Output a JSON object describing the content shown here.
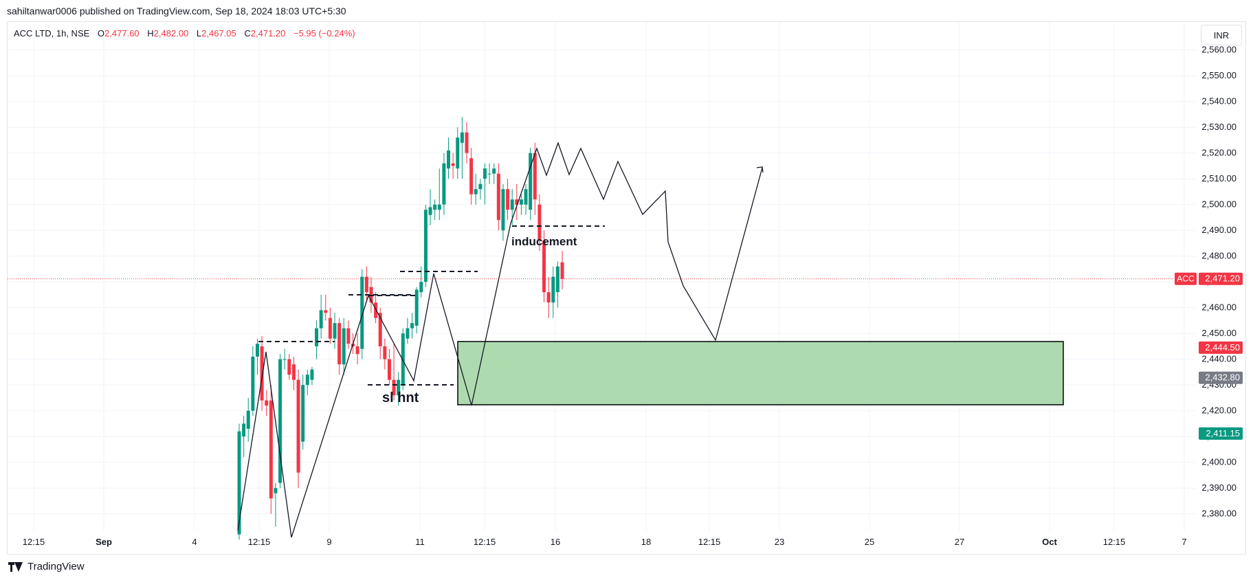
{
  "header": {
    "publisher": "sahiltanwar0006 published on TradingView.com, Sep 18, 2024 18:03 UTC+5:30"
  },
  "ohlc": {
    "symbol": "ACC LTD, 1h, NSE",
    "o_label": "O",
    "o": "2,477.60",
    "h_label": "H",
    "h": "2,482.00",
    "l_label": "L",
    "l": "2,467.05",
    "c_label": "C",
    "c": "2,471.20",
    "change": "−5.95 (−0.24%)"
  },
  "currency": "INR",
  "brand": "TradingView",
  "colors": {
    "up": "#089981",
    "down": "#f23645",
    "zone_fill": "#a5d6a7",
    "grid": "#f0f3fa",
    "price_line": "#f23645",
    "neutral_badge": "#787b86"
  },
  "chart_data": {
    "type": "candlestick",
    "symbol": "ACC",
    "timeframe": "1h",
    "y_ticks": [
      2380,
      2390,
      2400,
      2410,
      2420,
      2430,
      2440,
      2450,
      2460,
      2470,
      2480,
      2490,
      2500,
      2510,
      2520,
      2530,
      2540,
      2550,
      2560
    ],
    "y_tick_labels": [
      "2,380.00",
      "2,390.00",
      "2,400.00",
      "2,410.00",
      "2,420.00",
      "2,430.00",
      "2,440.00",
      "2,450.00",
      "2,460.00",
      "2,470.00",
      "2,480.00",
      "2,490.00",
      "2,500.00",
      "2,510.00",
      "2,520.00",
      "2,530.00",
      "2,540.00",
      "2,550.00",
      "2,560.00"
    ],
    "x_labels": [
      "12:15",
      "Sep",
      "4",
      "12:15",
      "9",
      "11",
      "12:15",
      "16",
      "18",
      "12:15",
      "23",
      "25",
      "27",
      "Oct",
      "12:15",
      "7"
    ],
    "current_price": {
      "value": 2471.2,
      "tag": "ACC",
      "label": "2,471.20"
    },
    "price_badges": [
      {
        "value": 2444.5,
        "label": "2,444.50",
        "color": "#f23645"
      },
      {
        "value": 2432.8,
        "label": "2,432.80",
        "color": "#787b86"
      },
      {
        "value": 2411.15,
        "label": "2,411.15",
        "color": "#089981"
      }
    ],
    "candles": [
      {
        "o": 2372,
        "h": 2415,
        "l": 2370,
        "c": 2412
      },
      {
        "o": 2410,
        "h": 2418,
        "l": 2402,
        "c": 2415
      },
      {
        "o": 2413,
        "h": 2425,
        "l": 2408,
        "c": 2420
      },
      {
        "o": 2420,
        "h": 2445,
        "l": 2418,
        "c": 2441
      },
      {
        "o": 2441,
        "h": 2448,
        "l": 2434,
        "c": 2446
      },
      {
        "o": 2445,
        "h": 2449,
        "l": 2420,
        "c": 2424
      },
      {
        "o": 2424,
        "h": 2428,
        "l": 2418,
        "c": 2422
      },
      {
        "o": 2424,
        "h": 2430,
        "l": 2380,
        "c": 2386
      },
      {
        "o": 2388,
        "h": 2392,
        "l": 2375,
        "c": 2390
      },
      {
        "o": 2392,
        "h": 2442,
        "l": 2390,
        "c": 2440
      },
      {
        "o": 2440,
        "h": 2444,
        "l": 2436,
        "c": 2440
      },
      {
        "o": 2440,
        "h": 2442,
        "l": 2432,
        "c": 2434
      },
      {
        "o": 2438,
        "h": 2441,
        "l": 2428,
        "c": 2432
      },
      {
        "o": 2432,
        "h": 2436,
        "l": 2390,
        "c": 2396
      },
      {
        "o": 2408,
        "h": 2434,
        "l": 2405,
        "c": 2430
      },
      {
        "o": 2430,
        "h": 2436,
        "l": 2426,
        "c": 2434
      },
      {
        "o": 2432,
        "h": 2437,
        "l": 2430,
        "c": 2436
      },
      {
        "o": 2445,
        "h": 2455,
        "l": 2440,
        "c": 2452
      },
      {
        "o": 2452,
        "h": 2465,
        "l": 2448,
        "c": 2459
      },
      {
        "o": 2459,
        "h": 2465,
        "l": 2455,
        "c": 2458
      },
      {
        "o": 2456,
        "h": 2460,
        "l": 2446,
        "c": 2448
      },
      {
        "o": 2448,
        "h": 2458,
        "l": 2444,
        "c": 2454
      },
      {
        "o": 2454,
        "h": 2456,
        "l": 2434,
        "c": 2438
      },
      {
        "o": 2438,
        "h": 2456,
        "l": 2434,
        "c": 2452
      },
      {
        "o": 2452,
        "h": 2455,
        "l": 2444,
        "c": 2446
      },
      {
        "o": 2446,
        "h": 2450,
        "l": 2442,
        "c": 2445
      },
      {
        "o": 2445,
        "h": 2450,
        "l": 2438,
        "c": 2442
      },
      {
        "o": 2444,
        "h": 2475,
        "l": 2440,
        "c": 2472
      },
      {
        "o": 2472,
        "h": 2476,
        "l": 2462,
        "c": 2466
      },
      {
        "o": 2468,
        "h": 2472,
        "l": 2458,
        "c": 2462
      },
      {
        "o": 2462,
        "h": 2466,
        "l": 2454,
        "c": 2456
      },
      {
        "o": 2458,
        "h": 2460,
        "l": 2440,
        "c": 2445
      },
      {
        "o": 2445,
        "h": 2448,
        "l": 2436,
        "c": 2440
      },
      {
        "o": 2440,
        "h": 2444,
        "l": 2430,
        "c": 2432
      },
      {
        "o": 2432,
        "h": 2446,
        "l": 2424,
        "c": 2426
      },
      {
        "o": 2426,
        "h": 2435,
        "l": 2422,
        "c": 2432
      },
      {
        "o": 2430,
        "h": 2452,
        "l": 2428,
        "c": 2450
      },
      {
        "o": 2448,
        "h": 2456,
        "l": 2446,
        "c": 2452
      },
      {
        "o": 2452,
        "h": 2458,
        "l": 2448,
        "c": 2454
      },
      {
        "o": 2453,
        "h": 2468,
        "l": 2450,
        "c": 2467
      },
      {
        "o": 2466,
        "h": 2476,
        "l": 2464,
        "c": 2470
      },
      {
        "o": 2470,
        "h": 2500,
        "l": 2468,
        "c": 2498
      },
      {
        "o": 2496,
        "h": 2506,
        "l": 2492,
        "c": 2499
      },
      {
        "o": 2498,
        "h": 2502,
        "l": 2494,
        "c": 2500
      },
      {
        "o": 2498,
        "h": 2514,
        "l": 2494,
        "c": 2500
      },
      {
        "o": 2500,
        "h": 2520,
        "l": 2496,
        "c": 2516
      },
      {
        "o": 2514,
        "h": 2526,
        "l": 2510,
        "c": 2521
      },
      {
        "o": 2516,
        "h": 2520,
        "l": 2510,
        "c": 2515
      },
      {
        "o": 2514,
        "h": 2530,
        "l": 2510,
        "c": 2526
      },
      {
        "o": 2524,
        "h": 2534,
        "l": 2510,
        "c": 2528
      },
      {
        "o": 2528,
        "h": 2532,
        "l": 2516,
        "c": 2520
      },
      {
        "o": 2518,
        "h": 2522,
        "l": 2500,
        "c": 2504
      },
      {
        "o": 2504,
        "h": 2512,
        "l": 2500,
        "c": 2506
      },
      {
        "o": 2506,
        "h": 2510,
        "l": 2502,
        "c": 2508
      },
      {
        "o": 2510,
        "h": 2516,
        "l": 2500,
        "c": 2514
      },
      {
        "o": 2512,
        "h": 2516,
        "l": 2508,
        "c": 2512
      },
      {
        "o": 2512,
        "h": 2516,
        "l": 2508,
        "c": 2514
      },
      {
        "o": 2512,
        "h": 2516,
        "l": 2490,
        "c": 2494
      },
      {
        "o": 2490,
        "h": 2508,
        "l": 2486,
        "c": 2506
      },
      {
        "o": 2506,
        "h": 2510,
        "l": 2494,
        "c": 2498
      },
      {
        "o": 2498,
        "h": 2506,
        "l": 2492,
        "c": 2502
      },
      {
        "o": 2502,
        "h": 2508,
        "l": 2494,
        "c": 2500
      },
      {
        "o": 2500,
        "h": 2504,
        "l": 2496,
        "c": 2502
      },
      {
        "o": 2500,
        "h": 2508,
        "l": 2496,
        "c": 2506
      },
      {
        "o": 2498,
        "h": 2522,
        "l": 2494,
        "c": 2520
      },
      {
        "o": 2520,
        "h": 2524,
        "l": 2496,
        "c": 2502
      },
      {
        "o": 2500,
        "h": 2504,
        "l": 2482,
        "c": 2486
      },
      {
        "o": 2486,
        "h": 2490,
        "l": 2462,
        "c": 2466
      },
      {
        "o": 2466,
        "h": 2472,
        "l": 2456,
        "c": 2462
      },
      {
        "o": 2462,
        "h": 2476,
        "l": 2456,
        "c": 2472
      },
      {
        "o": 2466,
        "h": 2478,
        "l": 2460,
        "c": 2476
      },
      {
        "o": 2477.6,
        "h": 2482,
        "l": 2467.05,
        "c": 2471.2
      }
    ]
  },
  "annotations": {
    "label_sl_hnt": "sl hnt",
    "label_inducement": "inducement"
  }
}
